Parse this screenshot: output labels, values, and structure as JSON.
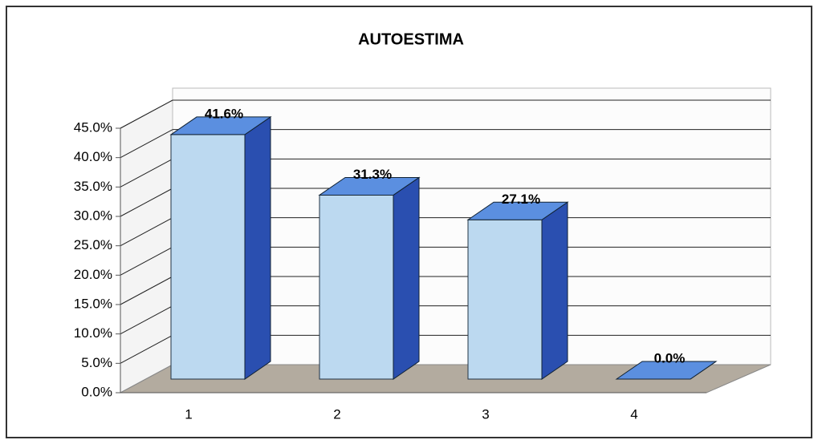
{
  "chart_data": {
    "type": "bar",
    "title": "AUTOESTIMA",
    "categories": [
      "1",
      "2",
      "3",
      "4"
    ],
    "values": [
      41.6,
      31.3,
      27.1,
      0.0
    ],
    "value_labels": [
      "41.6%",
      "31.3%",
      "27.1%",
      "0.0%"
    ],
    "color": "#bcd9f0",
    "ylim": [
      0,
      45
    ],
    "yticks": [
      {
        "value": 0,
        "label": "0.0%"
      },
      {
        "value": 5,
        "label": "5.0%"
      },
      {
        "value": 10,
        "label": "10.0%"
      },
      {
        "value": 15,
        "label": "15.0%"
      },
      {
        "value": 20,
        "label": "20.0%"
      },
      {
        "value": 25,
        "label": "25.0%"
      },
      {
        "value": 30,
        "label": "30.0%"
      },
      {
        "value": 35,
        "label": "35.0%"
      },
      {
        "value": 40,
        "label": "40.0%"
      },
      {
        "value": 45,
        "label": "45.0%"
      }
    ],
    "grid": true
  }
}
